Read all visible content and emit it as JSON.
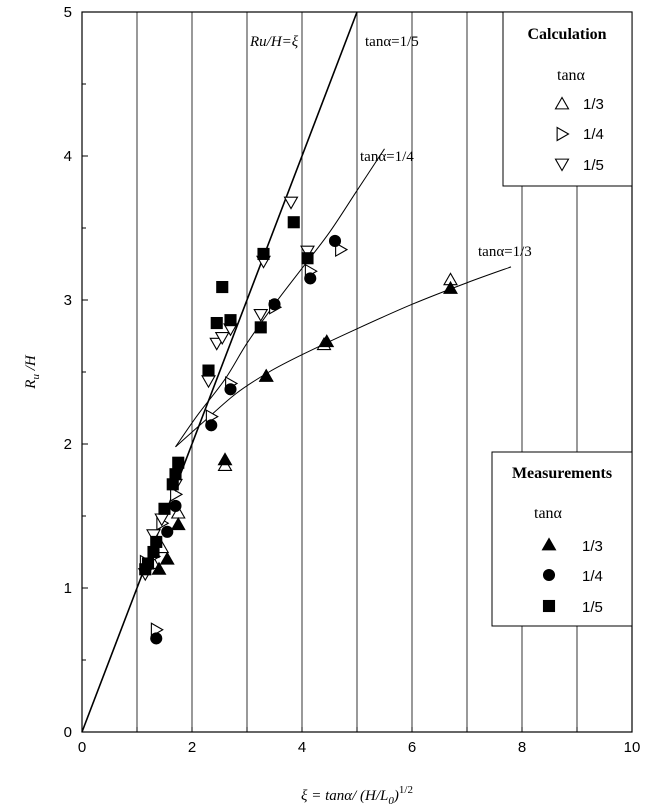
{
  "chart_data": {
    "type": "scatter",
    "title": "",
    "xlabel": "ξ = tanα/ (H/L0)^1/2",
    "xlabel_parts": {
      "main": "ξ = tanα/ (H/L",
      "sub": "0",
      "close": ")",
      "sup": "1/2"
    },
    "ylabel": "Ru /H",
    "ylabel_parts": {
      "main": "R",
      "sub": "u",
      "rest": " /H"
    },
    "xlim": [
      0,
      10
    ],
    "ylim": [
      0,
      5
    ],
    "x_ticks": [
      0,
      2,
      4,
      6,
      8,
      10
    ],
    "y_ticks": [
      0,
      1,
      2,
      3,
      4,
      5
    ],
    "grid": "vertical gridlines at every unit of x",
    "annotations": {
      "identity_line": "Ru/H=ξ",
      "curve_1_5": "tanα=1/5",
      "curve_1_4": "tanα=1/4",
      "curve_1_3": "tanα=1/3"
    },
    "legend_calculation": {
      "title": "Calculation",
      "subtitle": "tanα",
      "placement": "top-right",
      "items": [
        {
          "label": "1/3",
          "marker": "triangle-up-open"
        },
        {
          "label": "1/4",
          "marker": "triangle-right-open"
        },
        {
          "label": "1/5",
          "marker": "triangle-down-open"
        }
      ]
    },
    "legend_measurements": {
      "title": "Measurements",
      "subtitle": "tanα",
      "placement": "middle-right",
      "items": [
        {
          "label": "1/3",
          "marker": "triangle-up-filled"
        },
        {
          "label": "1/4",
          "marker": "circle-filled"
        },
        {
          "label": "1/5",
          "marker": "square-filled"
        }
      ]
    },
    "lines": [
      {
        "name": "Ru/H=ξ",
        "points": [
          [
            0,
            0
          ],
          [
            5.0,
            5.0
          ]
        ]
      },
      {
        "name": "tanα=1/4",
        "points": [
          [
            1.7,
            1.98
          ],
          [
            2.1,
            2.2
          ],
          [
            2.6,
            2.45
          ],
          [
            3.0,
            2.7
          ],
          [
            3.5,
            2.97
          ],
          [
            4.0,
            3.22
          ],
          [
            4.5,
            3.47
          ],
          [
            5.0,
            3.76
          ],
          [
            5.5,
            4.05
          ]
        ]
      },
      {
        "name": "tanα=1/3",
        "points": [
          [
            1.7,
            1.98
          ],
          [
            2.2,
            2.15
          ],
          [
            2.8,
            2.35
          ],
          [
            3.4,
            2.5
          ],
          [
            4.0,
            2.62
          ],
          [
            5.0,
            2.8
          ],
          [
            6.0,
            2.97
          ],
          [
            7.0,
            3.12
          ],
          [
            7.8,
            3.23
          ]
        ]
      }
    ],
    "series": [
      {
        "name": "Calculation tanα 1/3",
        "marker": "triangle-up-open",
        "points": [
          [
            1.3,
            1.17
          ],
          [
            1.45,
            1.28
          ],
          [
            1.75,
            1.52
          ],
          [
            2.6,
            1.85
          ],
          [
            3.35,
            2.47
          ],
          [
            4.4,
            2.69
          ],
          [
            6.7,
            3.14
          ]
        ]
      },
      {
        "name": "Calculation tanα 1/4",
        "marker": "triangle-right-open",
        "points": [
          [
            1.15,
            1.18
          ],
          [
            1.3,
            1.22
          ],
          [
            1.45,
            1.45
          ],
          [
            1.7,
            1.65
          ],
          [
            1.35,
            0.71
          ],
          [
            2.35,
            2.19
          ],
          [
            2.7,
            2.42
          ],
          [
            3.5,
            2.95
          ],
          [
            4.15,
            3.2
          ],
          [
            4.7,
            3.35
          ]
        ]
      },
      {
        "name": "Calculation tanα 1/5",
        "marker": "triangle-down-open",
        "points": [
          [
            1.15,
            1.1
          ],
          [
            1.3,
            1.37
          ],
          [
            1.45,
            1.48
          ],
          [
            1.7,
            1.72
          ],
          [
            2.3,
            2.44
          ],
          [
            2.45,
            2.7
          ],
          [
            2.55,
            2.74
          ],
          [
            2.7,
            2.8
          ],
          [
            3.25,
            2.9
          ],
          [
            3.3,
            3.27
          ],
          [
            3.8,
            3.68
          ],
          [
            4.1,
            3.34
          ]
        ]
      },
      {
        "name": "Measurements tanα 1/3",
        "marker": "triangle-up-filled",
        "points": [
          [
            1.4,
            1.13
          ],
          [
            1.55,
            1.2
          ],
          [
            1.75,
            1.44
          ],
          [
            2.6,
            1.89
          ],
          [
            3.35,
            2.47
          ],
          [
            4.45,
            2.71
          ],
          [
            6.7,
            3.08
          ]
        ]
      },
      {
        "name": "Measurements tanα 1/4",
        "marker": "circle-filled",
        "points": [
          [
            1.35,
            0.65
          ],
          [
            1.55,
            1.39
          ],
          [
            1.7,
            1.57
          ],
          [
            2.35,
            2.13
          ],
          [
            2.7,
            2.38
          ],
          [
            3.5,
            2.97
          ],
          [
            4.15,
            3.15
          ],
          [
            4.6,
            3.41
          ]
        ]
      },
      {
        "name": "Measurements tanα 1/5",
        "marker": "square-filled",
        "points": [
          [
            1.15,
            1.13
          ],
          [
            1.2,
            1.17
          ],
          [
            1.3,
            1.25
          ],
          [
            1.35,
            1.32
          ],
          [
            1.5,
            1.55
          ],
          [
            1.65,
            1.72
          ],
          [
            1.7,
            1.79
          ],
          [
            1.75,
            1.87
          ],
          [
            2.3,
            2.51
          ],
          [
            2.45,
            2.84
          ],
          [
            2.55,
            3.09
          ],
          [
            2.7,
            2.86
          ],
          [
            3.25,
            2.81
          ],
          [
            3.3,
            3.32
          ],
          [
            3.85,
            3.54
          ],
          [
            4.1,
            3.29
          ]
        ]
      }
    ]
  }
}
